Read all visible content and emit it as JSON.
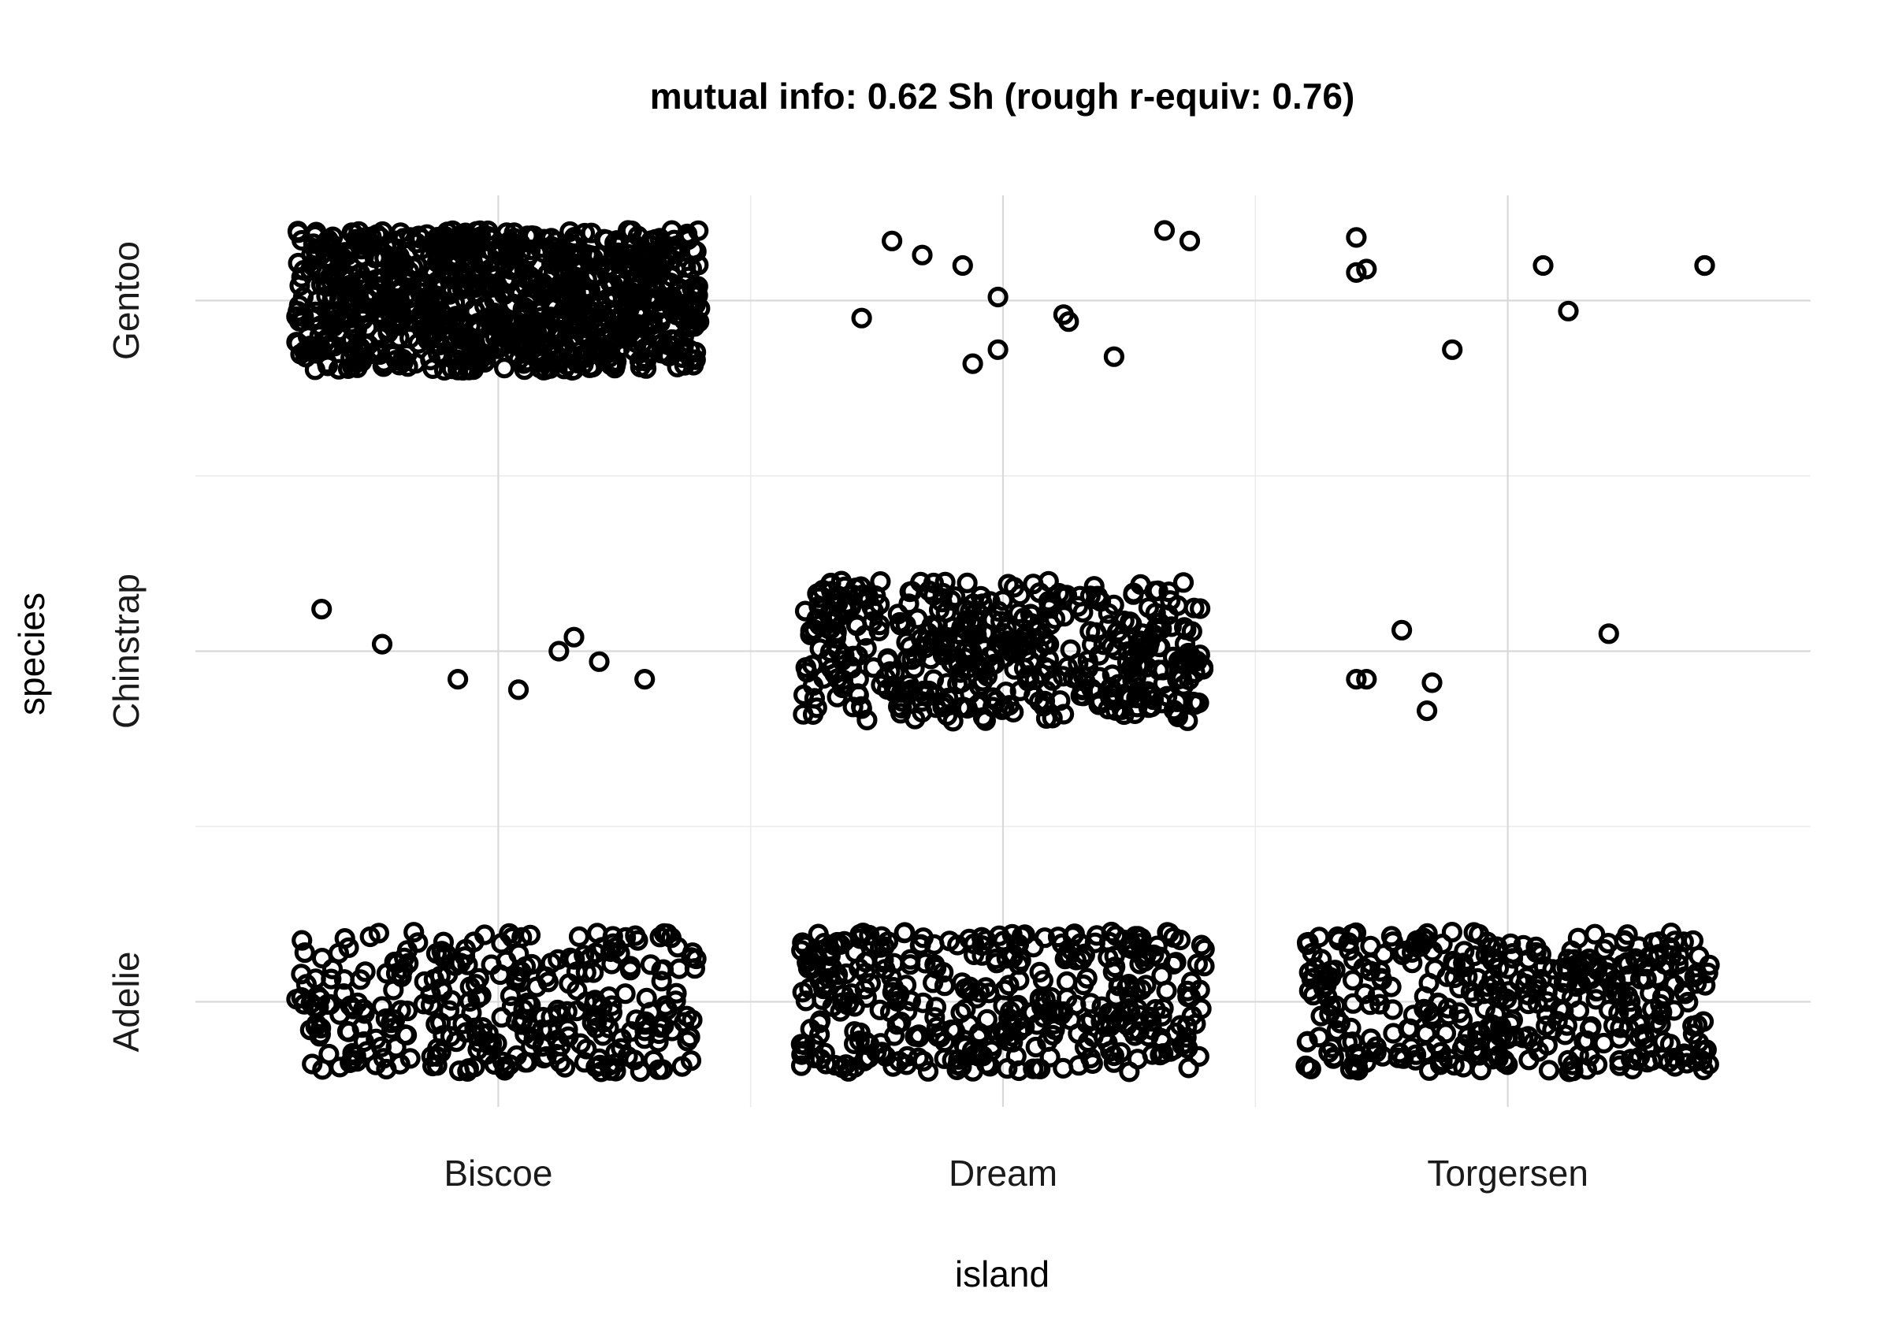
{
  "chart_data": {
    "type": "scatter",
    "subtype": "jittered-categorical",
    "title": "mutual info: 0.62 Sh  (rough r-equiv: 0.76)",
    "xlabel": "island",
    "ylabel": "species",
    "x_categories": [
      "Biscoe",
      "Dream",
      "Torgersen"
    ],
    "y_categories": [
      "Adelie",
      "Chinstrap",
      "Gentoo"
    ],
    "grid": true,
    "legend": "none",
    "marker": "open-circle",
    "jitter": 0.4,
    "counts": [
      {
        "island": "Biscoe",
        "species": "Adelie",
        "n": 300
      },
      {
        "island": "Biscoe",
        "species": "Chinstrap",
        "n": 8
      },
      {
        "island": "Biscoe",
        "species": "Gentoo",
        "n": 900
      },
      {
        "island": "Dream",
        "species": "Adelie",
        "n": 380
      },
      {
        "island": "Dream",
        "species": "Chinstrap",
        "n": 440
      },
      {
        "island": "Dream",
        "species": "Gentoo",
        "n": 12
      },
      {
        "island": "Torgersen",
        "species": "Adelie",
        "n": 380
      },
      {
        "island": "Torgersen",
        "species": "Chinstrap",
        "n": 6
      },
      {
        "island": "Torgersen",
        "species": "Gentoo",
        "n": 8
      }
    ],
    "sparse_points": [
      {
        "island": "Biscoe",
        "species": "Chinstrap",
        "x": 0.65,
        "y": 2.12
      },
      {
        "island": "Biscoe",
        "species": "Chinstrap",
        "x": 0.77,
        "y": 2.02
      },
      {
        "island": "Biscoe",
        "species": "Chinstrap",
        "x": 0.92,
        "y": 1.92
      },
      {
        "island": "Biscoe",
        "species": "Chinstrap",
        "x": 1.04,
        "y": 1.89
      },
      {
        "island": "Biscoe",
        "species": "Chinstrap",
        "x": 1.12,
        "y": 2.0
      },
      {
        "island": "Biscoe",
        "species": "Chinstrap",
        "x": 1.15,
        "y": 2.04
      },
      {
        "island": "Biscoe",
        "species": "Chinstrap",
        "x": 1.2,
        "y": 1.97
      },
      {
        "island": "Biscoe",
        "species": "Chinstrap",
        "x": 1.29,
        "y": 1.92
      },
      {
        "island": "Dream",
        "species": "Gentoo",
        "x": 1.78,
        "y": 3.17
      },
      {
        "island": "Dream",
        "species": "Gentoo",
        "x": 1.84,
        "y": 3.13
      },
      {
        "island": "Dream",
        "species": "Gentoo",
        "x": 1.92,
        "y": 3.1
      },
      {
        "island": "Dream",
        "species": "Gentoo",
        "x": 1.94,
        "y": 2.82
      },
      {
        "island": "Dream",
        "species": "Gentoo",
        "x": 1.99,
        "y": 2.86
      },
      {
        "island": "Dream",
        "species": "Gentoo",
        "x": 1.99,
        "y": 3.01
      },
      {
        "island": "Dream",
        "species": "Gentoo",
        "x": 2.12,
        "y": 2.96
      },
      {
        "island": "Dream",
        "species": "Gentoo",
        "x": 2.13,
        "y": 2.94
      },
      {
        "island": "Dream",
        "species": "Gentoo",
        "x": 2.22,
        "y": 2.84
      },
      {
        "island": "Dream",
        "species": "Gentoo",
        "x": 2.32,
        "y": 3.2
      },
      {
        "island": "Dream",
        "species": "Gentoo",
        "x": 2.37,
        "y": 3.17
      },
      {
        "island": "Dream",
        "species": "Gentoo",
        "x": 1.72,
        "y": 2.95
      },
      {
        "island": "Torgersen",
        "species": "Chinstrap",
        "x": 2.7,
        "y": 1.92
      },
      {
        "island": "Torgersen",
        "species": "Chinstrap",
        "x": 2.79,
        "y": 2.06
      },
      {
        "island": "Torgersen",
        "species": "Chinstrap",
        "x": 2.84,
        "y": 1.83
      },
      {
        "island": "Torgersen",
        "species": "Chinstrap",
        "x": 2.85,
        "y": 1.91
      },
      {
        "island": "Torgersen",
        "species": "Chinstrap",
        "x": 3.2,
        "y": 2.05
      },
      {
        "island": "Torgersen",
        "species": "Chinstrap",
        "x": 2.72,
        "y": 1.92
      },
      {
        "island": "Torgersen",
        "species": "Gentoo",
        "x": 2.7,
        "y": 3.18
      },
      {
        "island": "Torgersen",
        "species": "Gentoo",
        "x": 2.7,
        "y": 3.08
      },
      {
        "island": "Torgersen",
        "species": "Gentoo",
        "x": 2.72,
        "y": 3.09
      },
      {
        "island": "Torgersen",
        "species": "Gentoo",
        "x": 2.89,
        "y": 2.86
      },
      {
        "island": "Torgersen",
        "species": "Gentoo",
        "x": 3.07,
        "y": 3.1
      },
      {
        "island": "Torgersen",
        "species": "Gentoo",
        "x": 3.12,
        "y": 2.97
      },
      {
        "island": "Torgersen",
        "species": "Gentoo",
        "x": 3.39,
        "y": 3.1
      },
      {
        "island": "Torgersen",
        "species": "Gentoo",
        "x": 3.39,
        "y": 3.1
      }
    ],
    "xlim": [
      0.4,
      3.6
    ],
    "ylim": [
      0.7,
      3.3
    ],
    "colors": {
      "point": "#000000",
      "grid_major": "#d9d9d9",
      "grid_minor": "#ebebeb",
      "background": "#ffffff"
    }
  }
}
